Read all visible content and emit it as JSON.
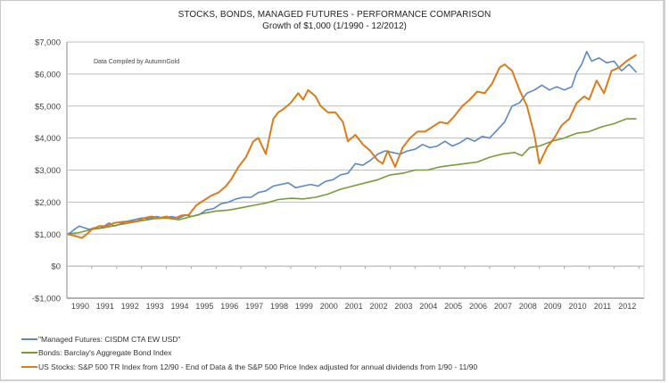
{
  "chart_data": {
    "type": "line",
    "title": "STOCKS, BONDS, MANAGED FUTURES - PERFORMANCE COMPARISON",
    "subtitle": "Growth of $1,000 (1/1990 - 12/2012)",
    "annotation": "Data Compiled by AutumnGold",
    "xlabel": "",
    "ylabel": "",
    "ylim": [
      -1000,
      7000
    ],
    "xlim": [
      1990.0,
      2012.95
    ],
    "yticks": [
      {
        "value": 7000,
        "label": "$7,000"
      },
      {
        "value": 6000,
        "label": "$6,000"
      },
      {
        "value": 5000,
        "label": "$5,000"
      },
      {
        "value": 4000,
        "label": "$4,000"
      },
      {
        "value": 3000,
        "label": "$3,000"
      },
      {
        "value": 2000,
        "label": "$2,000"
      },
      {
        "value": 1000,
        "label": "$1,000"
      },
      {
        "value": 0,
        "label": "$0"
      },
      {
        "value": -1000,
        "label": "-$1,000"
      }
    ],
    "xticks": [
      "1990",
      "1991",
      "1992",
      "1993",
      "1994",
      "1995",
      "1996",
      "1997",
      "1998",
      "1999",
      "2000",
      "2001",
      "2002",
      "2003",
      "2004",
      "2005",
      "2006",
      "2007",
      "2008",
      "2009",
      "2010",
      "2011",
      "2012"
    ],
    "grid": true,
    "legend_position": "bottom-left",
    "series": [
      {
        "name": "\"Managed Futures: CISDM CTA EW USD\"",
        "color": "#5b88c4",
        "x": [
          1990.0,
          1990.15,
          1990.3,
          1990.5,
          1990.7,
          1990.9,
          1991.1,
          1991.3,
          1991.5,
          1991.7,
          1991.9,
          1992.1,
          1992.4,
          1992.7,
          1993.0,
          1993.3,
          1993.6,
          1993.9,
          1994.2,
          1994.5,
          1994.8,
          1995.0,
          1995.3,
          1995.6,
          1995.9,
          1996.2,
          1996.5,
          1996.8,
          1997.1,
          1997.4,
          1997.7,
          1998.0,
          1998.3,
          1998.6,
          1998.9,
          1999.2,
          1999.5,
          1999.8,
          2000.1,
          2000.4,
          2000.7,
          2001.0,
          2001.3,
          2001.6,
          2001.9,
          2002.2,
          2002.5,
          2002.8,
          2003.1,
          2003.4,
          2003.7,
          2004.0,
          2004.3,
          2004.6,
          2004.9,
          2005.2,
          2005.5,
          2005.8,
          2006.1,
          2006.4,
          2006.7,
          2007.0,
          2007.3,
          2007.6,
          2007.9,
          2008.2,
          2008.5,
          2008.8,
          2009.1,
          2009.4,
          2009.7,
          2010.0,
          2010.3,
          2010.5,
          2010.7,
          2010.9,
          2011.1,
          2011.4,
          2011.7,
          2012.0,
          2012.3,
          2012.6,
          2012.9
        ],
        "values": [
          1000,
          1050,
          1150,
          1250,
          1200,
          1150,
          1200,
          1180,
          1250,
          1350,
          1250,
          1300,
          1400,
          1450,
          1500,
          1480,
          1550,
          1500,
          1550,
          1500,
          1600,
          1550,
          1600,
          1750,
          1800,
          1950,
          2000,
          2100,
          2150,
          2150,
          2300,
          2350,
          2500,
          2550,
          2600,
          2450,
          2500,
          2550,
          2500,
          2650,
          2700,
          2850,
          2900,
          3200,
          3150,
          3300,
          3500,
          3600,
          3550,
          3500,
          3600,
          3650,
          3800,
          3700,
          3750,
          3900,
          3750,
          3850,
          4000,
          3900,
          4050,
          4000,
          4250,
          4500,
          5000,
          5100,
          5400,
          5500,
          5650,
          5500,
          5600,
          5500,
          5600,
          6050,
          6300,
          6700,
          6400,
          6500,
          6350,
          6400,
          6100,
          6300,
          6050
        ]
      },
      {
        "name": "Bonds: Barclay's Aggregate Bond Index",
        "color": "#7a9a3a",
        "x": [
          1990.0,
          1990.5,
          1991.0,
          1991.5,
          1992.0,
          1992.5,
          1993.0,
          1993.5,
          1994.0,
          1994.5,
          1995.0,
          1995.5,
          1996.0,
          1996.5,
          1997.0,
          1997.5,
          1998.0,
          1998.5,
          1999.0,
          1999.5,
          2000.0,
          2000.5,
          2001.0,
          2001.5,
          2002.0,
          2002.5,
          2003.0,
          2003.5,
          2004.0,
          2004.5,
          2005.0,
          2005.5,
          2006.0,
          2006.5,
          2007.0,
          2007.5,
          2008.0,
          2008.3,
          2008.6,
          2009.0,
          2009.5,
          2010.0,
          2010.5,
          2011.0,
          2011.5,
          2012.0,
          2012.5,
          2012.9
        ],
        "values": [
          1000,
          1050,
          1150,
          1200,
          1280,
          1350,
          1420,
          1480,
          1500,
          1450,
          1550,
          1650,
          1720,
          1750,
          1820,
          1900,
          1970,
          2080,
          2120,
          2100,
          2150,
          2250,
          2400,
          2500,
          2600,
          2700,
          2850,
          2900,
          3000,
          3000,
          3100,
          3150,
          3200,
          3250,
          3400,
          3500,
          3550,
          3450,
          3700,
          3750,
          3900,
          4000,
          4150,
          4200,
          4350,
          4450,
          4600,
          4600
        ]
      },
      {
        "name": "US Stocks: S&P 500 TR Index from 12/90 - End of Data & the S&P 500 Price Index adjusted for annual dividends from 1/90 - 11/90",
        "color": "#d97c1c",
        "x": [
          1990.0,
          1990.3,
          1990.6,
          1990.8,
          1991.0,
          1991.3,
          1991.6,
          1991.9,
          1992.2,
          1992.5,
          1992.8,
          1993.1,
          1993.4,
          1993.7,
          1994.0,
          1994.3,
          1994.6,
          1994.9,
          1995.2,
          1995.5,
          1995.8,
          1996.1,
          1996.4,
          1996.6,
          1996.9,
          1997.2,
          1997.5,
          1997.7,
          1998.0,
          1998.3,
          1998.5,
          1998.7,
          1999.0,
          1999.3,
          1999.5,
          1999.7,
          2000.0,
          2000.2,
          2000.5,
          2000.8,
          2001.1,
          2001.3,
          2001.6,
          2001.9,
          2002.2,
          2002.5,
          2002.7,
          2002.9,
          2003.2,
          2003.5,
          2003.8,
          2004.1,
          2004.4,
          2004.7,
          2005.0,
          2005.3,
          2005.6,
          2005.9,
          2006.2,
          2006.5,
          2006.8,
          2007.1,
          2007.4,
          2007.6,
          2007.9,
          2008.2,
          2008.5,
          2008.8,
          2009.0,
          2009.3,
          2009.6,
          2009.9,
          2010.2,
          2010.5,
          2010.8,
          2011.0,
          2011.3,
          2011.6,
          2011.9,
          2012.2,
          2012.5,
          2012.9
        ],
        "values": [
          1000,
          950,
          880,
          1000,
          1150,
          1250,
          1250,
          1350,
          1380,
          1400,
          1400,
          1500,
          1550,
          1500,
          1550,
          1480,
          1580,
          1600,
          1900,
          2050,
          2200,
          2300,
          2500,
          2700,
          3100,
          3400,
          3900,
          4000,
          3500,
          4600,
          4800,
          4900,
          5100,
          5400,
          5200,
          5500,
          5300,
          5000,
          4800,
          4800,
          4500,
          3900,
          4100,
          3800,
          3600,
          3300,
          3200,
          3600,
          3100,
          3700,
          4000,
          4200,
          4200,
          4350,
          4500,
          4450,
          4700,
          5000,
          5200,
          5450,
          5400,
          5700,
          6200,
          6300,
          6100,
          5500,
          5000,
          4100,
          3200,
          3700,
          4000,
          4400,
          4600,
          5100,
          5300,
          5200,
          5800,
          5400,
          6100,
          6200,
          6400,
          6600
        ]
      }
    ]
  }
}
